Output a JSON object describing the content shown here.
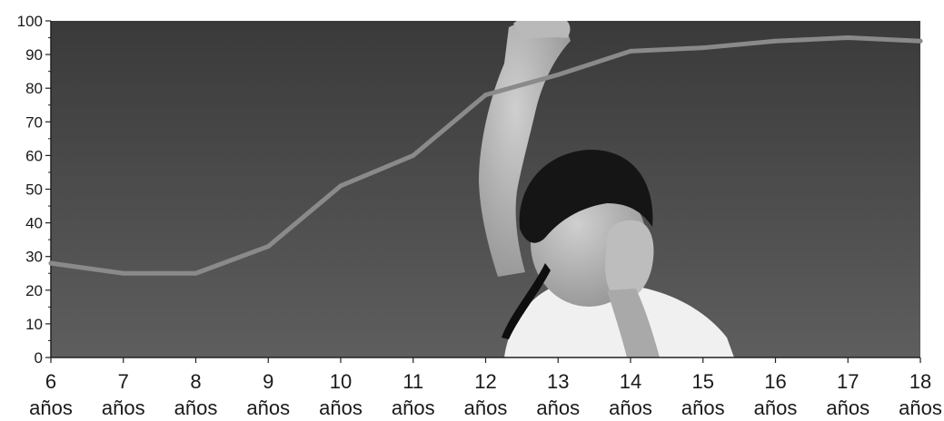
{
  "chart_data": {
    "type": "line",
    "title": "",
    "xlabel": "",
    "ylabel": "",
    "ylim": [
      0,
      100
    ],
    "y_ticks": [
      0,
      10,
      20,
      30,
      40,
      50,
      60,
      70,
      80,
      90,
      100
    ],
    "grid": false,
    "legend": "none",
    "categories": [
      "6",
      "7",
      "8",
      "9",
      "10",
      "11",
      "12",
      "13",
      "14",
      "15",
      "16",
      "17",
      "18"
    ],
    "category_unit": "años",
    "series": [
      {
        "values": [
          28,
          25,
          25,
          33,
          51,
          60,
          78,
          84,
          91,
          92,
          94,
          95,
          94
        ],
        "color": "#8a8a8a"
      }
    ],
    "background": "grayscale photo of a boy holding a phone with his arm raised",
    "colors": {
      "sky_top": "#3a3a3a",
      "sky_bottom": "#5e5e5e",
      "line": "#8a8a8a",
      "axis": "#222222"
    }
  }
}
